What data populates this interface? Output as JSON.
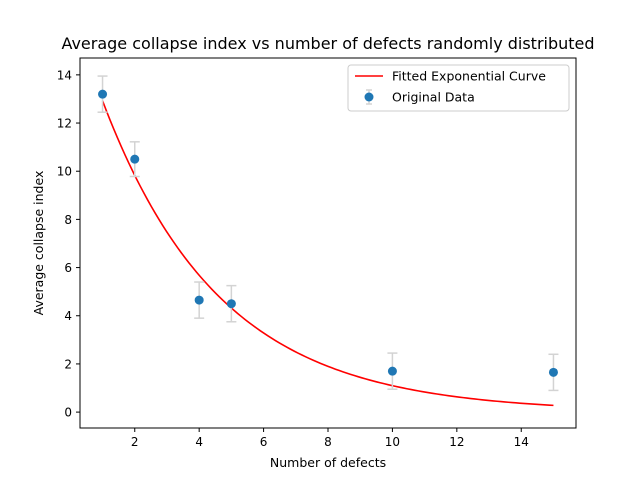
{
  "chart_data": {
    "type": "scatter",
    "title": "Average collapse index vs number of defects randomly distributed",
    "xlabel": "Number of defects",
    "ylabel": "Average collapse index",
    "xlim": [
      0.3,
      15.7
    ],
    "ylim": [
      -0.66,
      14.7
    ],
    "xticks": [
      2,
      4,
      6,
      8,
      10,
      12,
      14
    ],
    "yticks": [
      0,
      2,
      4,
      6,
      8,
      10,
      12,
      14
    ],
    "grid": false,
    "legend_position": "top-right",
    "series": [
      {
        "name": "Original Data",
        "kind": "errorbar-points",
        "color": "#1f77b4",
        "errorbar_color": "#d3d3d3",
        "x": [
          1,
          2,
          4,
          5,
          10,
          15
        ],
        "y": [
          13.2,
          10.5,
          4.65,
          4.5,
          1.7,
          1.65
        ],
        "yerr": [
          0.75,
          0.72,
          0.75,
          0.75,
          0.75,
          0.75
        ]
      },
      {
        "name": "Fitted Exponential Curve",
        "kind": "line",
        "color": "#ff0000",
        "model": "a*exp(-b*x)",
        "params": {
          "a": 17.0,
          "b": 0.274
        },
        "x_range": [
          1,
          15
        ]
      }
    ]
  }
}
